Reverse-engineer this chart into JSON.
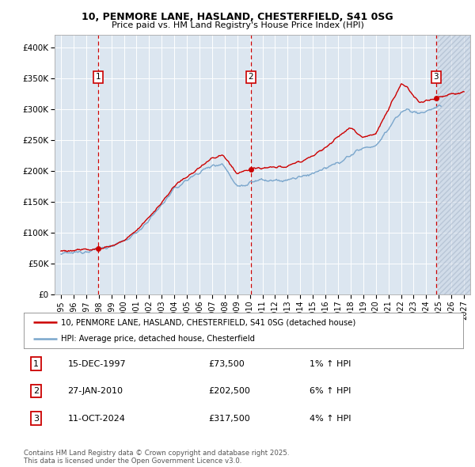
{
  "title1": "10, PENMORE LANE, HASLAND, CHESTERFIELD, S41 0SG",
  "title2": "Price paid vs. HM Land Registry's House Price Index (HPI)",
  "ylim": [
    0,
    420000
  ],
  "yticks": [
    0,
    50000,
    100000,
    150000,
    200000,
    250000,
    300000,
    350000,
    400000
  ],
  "ytick_labels": [
    "£0",
    "£50K",
    "£100K",
    "£150K",
    "£200K",
    "£250K",
    "£300K",
    "£350K",
    "£400K"
  ],
  "sale_dates": [
    1997.96,
    2010.07,
    2024.78
  ],
  "sale_prices": [
    73500,
    202500,
    317500
  ],
  "sale_labels": [
    "1",
    "2",
    "3"
  ],
  "hpi_color": "#7aa6cc",
  "price_color": "#cc0000",
  "dashed_color": "#cc0000",
  "background_color": "#dce6f0",
  "legend_line1": "10, PENMORE LANE, HASLAND, CHESTERFIELD, S41 0SG (detached house)",
  "legend_line2": "HPI: Average price, detached house, Chesterfield",
  "table_data": [
    [
      "1",
      "15-DEC-1997",
      "£73,500",
      "1% ↑ HPI"
    ],
    [
      "2",
      "27-JAN-2010",
      "£202,500",
      "6% ↑ HPI"
    ],
    [
      "3",
      "11-OCT-2024",
      "£317,500",
      "4% ↑ HPI"
    ]
  ],
  "footer": "Contains HM Land Registry data © Crown copyright and database right 2025.\nThis data is licensed under the Open Government Licence v3.0.",
  "xlim_start": 1994.5,
  "xlim_end": 2027.5,
  "xticks": [
    1995,
    1996,
    1997,
    1998,
    1999,
    2000,
    2001,
    2002,
    2003,
    2004,
    2005,
    2006,
    2007,
    2008,
    2009,
    2010,
    2011,
    2012,
    2013,
    2014,
    2015,
    2016,
    2017,
    2018,
    2019,
    2020,
    2021,
    2022,
    2023,
    2024,
    2025,
    2026,
    2027
  ]
}
